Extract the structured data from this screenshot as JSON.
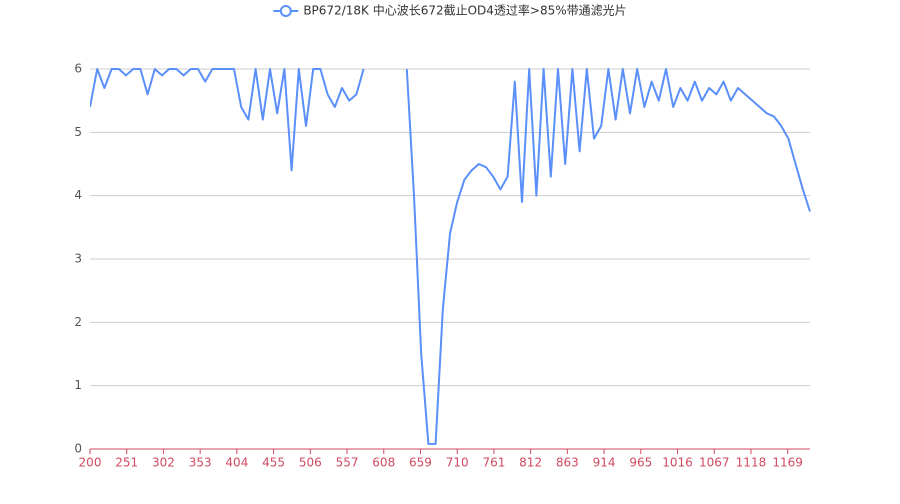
{
  "chart_data": {
    "type": "line",
    "legend": "top-center",
    "series": [
      {
        "name": "BP672/18K 中心波长672截止OD4透过率>85%带通滤光片",
        "color": "#5b8ff9",
        "x": [
          200,
          210,
          220,
          230,
          240,
          250,
          260,
          270,
          280,
          290,
          300,
          310,
          320,
          330,
          340,
          350,
          360,
          370,
          380,
          390,
          400,
          410,
          420,
          430,
          440,
          450,
          460,
          470,
          480,
          490,
          500,
          510,
          520,
          530,
          540,
          550,
          560,
          570,
          580,
          590,
          600,
          610,
          620,
          630,
          640,
          650,
          660,
          670,
          680,
          690,
          700,
          710,
          720,
          730,
          740,
          750,
          760,
          770,
          780,
          790,
          800,
          810,
          820,
          830,
          840,
          850,
          860,
          870,
          880,
          890,
          900,
          910,
          920,
          930,
          940,
          950,
          960,
          970,
          980,
          990,
          1000,
          1010,
          1020,
          1030,
          1040,
          1050,
          1060,
          1070,
          1080,
          1090,
          1100,
          1110,
          1120,
          1130,
          1140,
          1150,
          1160,
          1170,
          1180,
          1190,
          1200
        ],
        "values": [
          5.4,
          6,
          5.7,
          6,
          6,
          5.9,
          6,
          6,
          5.6,
          6,
          5.9,
          6,
          6,
          5.9,
          6,
          6,
          5.8,
          6,
          6,
          6,
          6,
          5.4,
          5.2,
          6,
          5.2,
          6,
          5.3,
          6,
          4.4,
          6,
          5.1,
          6,
          6,
          5.6,
          5.4,
          5.7,
          5.5,
          5.6,
          6,
          null,
          null,
          null,
          null,
          null,
          6,
          4.0,
          1.5,
          0.08,
          0.08,
          2.2,
          3.4,
          3.9,
          4.25,
          4.4,
          4.5,
          4.45,
          4.3,
          4.1,
          4.3,
          5.8,
          3.9,
          6,
          4.0,
          6,
          4.3,
          6,
          4.5,
          6,
          4.7,
          6,
          4.9,
          5.1,
          6,
          5.2,
          6,
          5.3,
          6,
          5.4,
          5.8,
          5.5,
          6,
          5.4,
          5.7,
          5.5,
          5.8,
          5.5,
          5.7,
          5.6,
          5.8,
          5.5,
          5.7,
          5.6,
          5.5,
          5.4,
          5.3,
          5.25,
          5.1,
          4.9,
          4.5,
          4.1,
          3.75
        ]
      }
    ],
    "xlim": [
      200,
      1200
    ],
    "xticks": [
      200,
      251,
      302,
      353,
      404,
      455,
      506,
      557,
      608,
      659,
      710,
      761,
      812,
      863,
      914,
      965,
      1016,
      1067,
      1118,
      1169
    ],
    "ylim": [
      0,
      6
    ],
    "yticks": [
      0,
      1,
      2,
      3,
      4,
      5,
      6
    ],
    "grid": true
  }
}
